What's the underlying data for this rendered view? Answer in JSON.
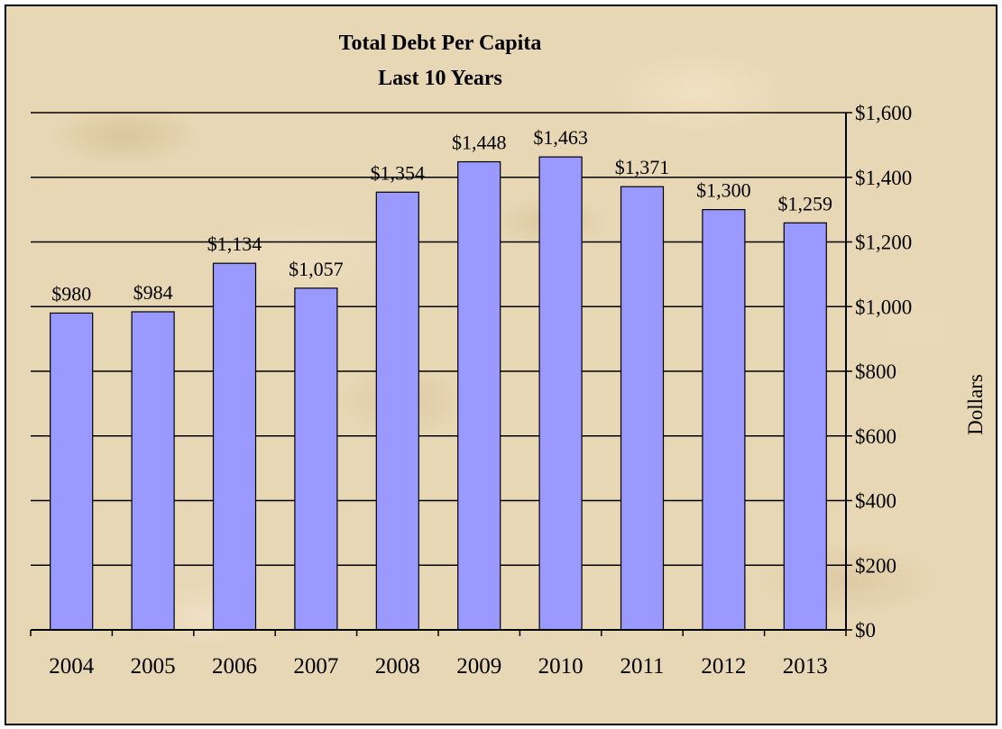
{
  "chart_data": {
    "type": "bar",
    "title": "Total Debt Per Capita",
    "subtitle": "Last 10 Years",
    "xlabel": "",
    "ylabel": "Dollars",
    "categories": [
      "2004",
      "2005",
      "2006",
      "2007",
      "2008",
      "2009",
      "2010",
      "2011",
      "2012",
      "2013"
    ],
    "values": [
      980,
      984,
      1134,
      1057,
      1354,
      1448,
      1463,
      1371,
      1300,
      1259
    ],
    "data_labels": [
      "$980",
      "$984",
      "$1,134",
      "$1,057",
      "$1,354",
      "$1,448",
      "$1,463",
      "$1,371",
      "$1,300",
      "$1,259"
    ],
    "ylim": [
      0,
      1600
    ],
    "y_ticks": [
      0,
      200,
      400,
      600,
      800,
      1000,
      1200,
      1400,
      1600
    ],
    "y_tick_labels": [
      "$0",
      "$200",
      "$400",
      "$600",
      "$800",
      "$1,000",
      "$1,200",
      "$1,400",
      "$1,600"
    ],
    "y_axis_side": "right",
    "grid": true,
    "bar_color": "#9999ff",
    "bar_edge_color": "#000000"
  }
}
